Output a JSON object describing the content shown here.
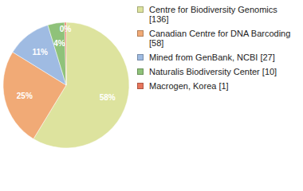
{
  "chart_data": {
    "type": "pie",
    "categories": [
      "Centre for Biodiversity Genomics [136]",
      "Canadian Centre for DNA Barcoding [58]",
      "Mined from GenBank, NCBI [27]",
      "Naturalis Biodiversity Center [10]",
      "Macrogen, Korea [1]"
    ],
    "values": [
      58.4,
      25.0,
      11.4,
      4.3,
      0.4
    ],
    "value_labels": [
      "58%",
      "25%",
      "11%",
      "4%",
      "0%"
    ],
    "colors": [
      "#dde39e",
      "#f1aa76",
      "#9fbbe2",
      "#8fc27a",
      "#e7755c"
    ],
    "data_labels": true
  }
}
